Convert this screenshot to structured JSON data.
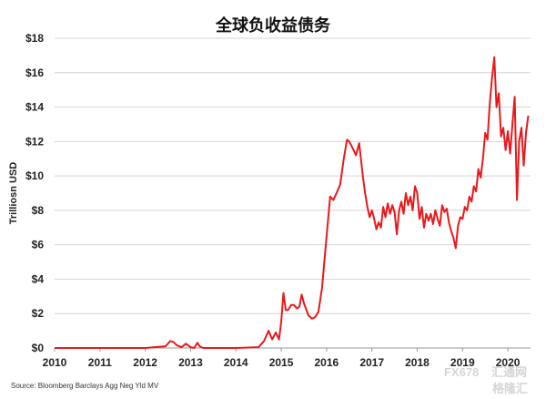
{
  "chart_data": {
    "type": "line",
    "title": "全球负收益债务",
    "ylabel": "Trilliosn USD",
    "xlabel": "",
    "source": "Source: Bloomberg Barclays Agg Neg Yld MV",
    "ylim": [
      0,
      18
    ],
    "xlim": [
      2010,
      2020.5
    ],
    "y_ticks": [
      0,
      2,
      4,
      6,
      8,
      10,
      12,
      14,
      16,
      18
    ],
    "y_tick_labels": [
      "$0",
      "$2",
      "$4",
      "$6",
      "$8",
      "$10",
      "$12",
      "$14",
      "$16",
      "$18"
    ],
    "x_ticks": [
      2010,
      2011,
      2012,
      2013,
      2014,
      2015,
      2016,
      2017,
      2018,
      2019,
      2020
    ],
    "x_tick_labels": [
      "2010",
      "2011",
      "2012",
      "2013",
      "2014",
      "2015",
      "2016",
      "2017",
      "2018",
      "2019",
      "2020"
    ],
    "grid": "horizontal",
    "line_color": "#e8191b",
    "series": [
      {
        "x": [
          2010.0,
          2012.0,
          2012.45,
          2012.55,
          2012.62,
          2012.7,
          2012.8,
          2012.9,
          2013.0,
          2013.08,
          2013.15,
          2013.2,
          2013.28,
          2013.35,
          2013.45,
          2013.6,
          2014.0,
          2014.5,
          2014.62,
          2014.72,
          2014.8,
          2014.88,
          2014.95,
          2015.0,
          2015.05,
          2015.1,
          2015.15,
          2015.22,
          2015.28,
          2015.35,
          2015.4,
          2015.45,
          2015.5,
          2015.6,
          2015.68,
          2015.75,
          2015.82,
          2015.9,
          2016.0,
          2016.08,
          2016.15,
          2016.22,
          2016.3,
          2016.38,
          2016.45,
          2016.5,
          2016.58,
          2016.65,
          2016.72,
          2016.8,
          2016.85,
          2016.9,
          2016.95,
          2017.0,
          2017.05,
          2017.1,
          2017.15,
          2017.2,
          2017.25,
          2017.3,
          2017.35,
          2017.4,
          2017.45,
          2017.5,
          2017.55,
          2017.6,
          2017.65,
          2017.7,
          2017.75,
          2017.8,
          2017.85,
          2017.9,
          2017.95,
          2018.0,
          2018.05,
          2018.1,
          2018.15,
          2018.2,
          2018.25,
          2018.3,
          2018.35,
          2018.4,
          2018.45,
          2018.5,
          2018.55,
          2018.6,
          2018.65,
          2018.7,
          2018.75,
          2018.8,
          2018.85,
          2018.9,
          2018.95,
          2019.0,
          2019.05,
          2019.1,
          2019.15,
          2019.2,
          2019.25,
          2019.3,
          2019.35,
          2019.4,
          2019.45,
          2019.5,
          2019.55,
          2019.6,
          2019.65,
          2019.7,
          2019.75,
          2019.8,
          2019.85,
          2019.9,
          2019.95,
          2020.0,
          2020.05,
          2020.1,
          2020.15,
          2020.2,
          2020.25,
          2020.3,
          2020.35,
          2020.4,
          2020.45
        ],
        "values": [
          0,
          0,
          0.1,
          0.4,
          0.35,
          0.15,
          0.05,
          0.25,
          0.05,
          0.0,
          0.3,
          0.1,
          0.0,
          0.0,
          0.0,
          0.0,
          0.0,
          0.05,
          0.4,
          1.0,
          0.5,
          0.9,
          0.5,
          1.5,
          3.2,
          2.2,
          2.2,
          2.5,
          2.5,
          2.3,
          2.4,
          3.1,
          2.6,
          1.9,
          1.7,
          1.8,
          2.1,
          3.5,
          6.5,
          8.8,
          8.6,
          9.0,
          9.5,
          11.0,
          12.1,
          12.0,
          11.6,
          11.2,
          11.9,
          10.0,
          9.0,
          8.2,
          7.6,
          8.0,
          7.5,
          6.9,
          7.3,
          7.0,
          8.2,
          7.6,
          8.4,
          7.8,
          8.3,
          7.9,
          6.6,
          8.0,
          8.5,
          7.8,
          9.0,
          8.3,
          8.8,
          8.0,
          9.4,
          9.0,
          7.5,
          8.2,
          7.0,
          7.8,
          7.4,
          7.8,
          7.2,
          8.0,
          7.5,
          7.1,
          8.3,
          7.9,
          8.1,
          7.3,
          6.8,
          6.4,
          5.8,
          7.1,
          7.6,
          7.5,
          8.2,
          8.0,
          8.8,
          8.5,
          9.4,
          9.1,
          10.4,
          9.9,
          11.0,
          12.5,
          12.1,
          14.2,
          15.7,
          16.9,
          14.0,
          14.8,
          12.3,
          12.8,
          11.5,
          12.6,
          11.3,
          13.0,
          14.6,
          8.6,
          12.0,
          12.8,
          10.6,
          12.5,
          13.5
        ]
      }
    ]
  },
  "watermark": {
    "brand": "FX678",
    "site": "汇通网",
    "brand2": "格隆汇"
  }
}
